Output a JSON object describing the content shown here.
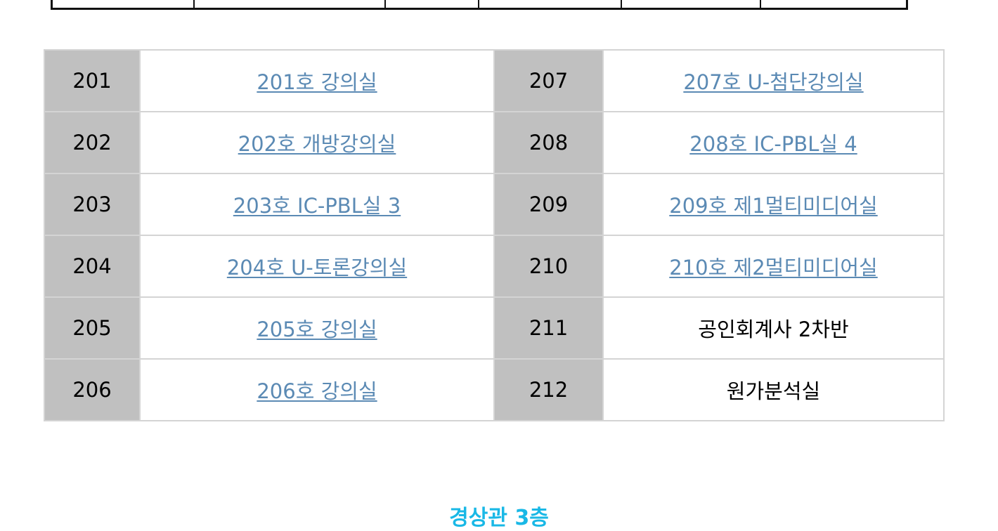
{
  "rooms": {
    "rows": [
      {
        "left_num": "201",
        "left_name": "201호 강의실",
        "left_link": true,
        "right_num": "207",
        "right_name": "207호 U-첨단강의실",
        "right_link": true
      },
      {
        "left_num": "202",
        "left_name": "202호 개방강의실",
        "left_link": true,
        "right_num": "208",
        "right_name": "208호 IC-PBL실 4",
        "right_link": true
      },
      {
        "left_num": "203",
        "left_name": "203호 IC-PBL실 3",
        "left_link": true,
        "right_num": "209",
        "right_name": "209호 제1멀티미디어실",
        "right_link": true
      },
      {
        "left_num": "204",
        "left_name": "204호 U-토론강의실",
        "left_link": true,
        "right_num": "210",
        "right_name": "210호 제2멀티미디어실",
        "right_link": true
      },
      {
        "left_num": "205",
        "left_name": "205호 강의실",
        "left_link": true,
        "right_num": "211",
        "right_name": "공인회계사 2차반",
        "right_link": false
      },
      {
        "left_num": "206",
        "left_name": "206호 강의실",
        "left_link": true,
        "right_num": "212",
        "right_name": "원가분석실",
        "right_link": false
      }
    ]
  },
  "next_section": {
    "title": "경상관 3층",
    "color": "#19b8e6"
  },
  "colors": {
    "link": "#5b8ab4",
    "number_cell_bg": "#c0c0c0",
    "border": "#d4d4d4"
  }
}
